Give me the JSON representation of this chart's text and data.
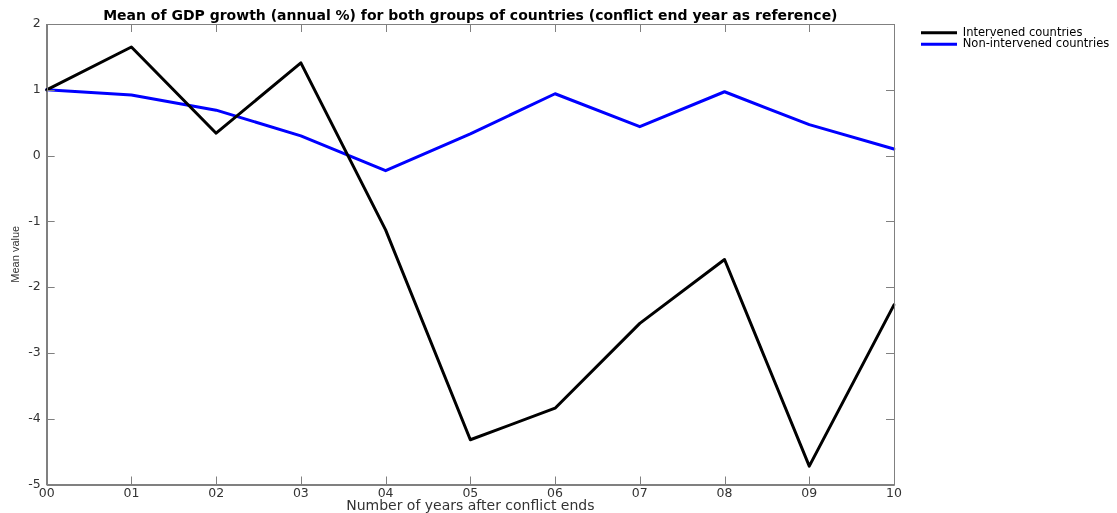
{
  "chart_data": {
    "type": "line",
    "title": "Mean of GDP growth (annual %) for both groups of countries (conflict end year as reference)",
    "xlabel": "Number of years after conflict ends",
    "ylabel": "Mean value",
    "categories": [
      "00",
      "01",
      "02",
      "03",
      "04",
      "05",
      "06",
      "07",
      "08",
      "09",
      "10"
    ],
    "series": [
      {
        "name": "Intervened countries",
        "color": "#000000",
        "values": [
          1.0,
          1.65,
          0.34,
          1.41,
          -1.13,
          -4.32,
          -3.84,
          -2.55,
          -1.58,
          -4.72,
          -2.27
        ]
      },
      {
        "name": "Non-intervened countries",
        "color": "#0000ff",
        "values": [
          1.0,
          0.92,
          0.69,
          0.3,
          -0.23,
          0.33,
          0.94,
          0.44,
          0.97,
          0.47,
          0.1
        ]
      }
    ],
    "ylim": [
      -5,
      2
    ],
    "yticks": [
      -5,
      -4,
      -3,
      -2,
      -1,
      0,
      1,
      2
    ],
    "grid": false,
    "legend": "top right",
    "marker": "none",
    "line_style": "solid"
  }
}
